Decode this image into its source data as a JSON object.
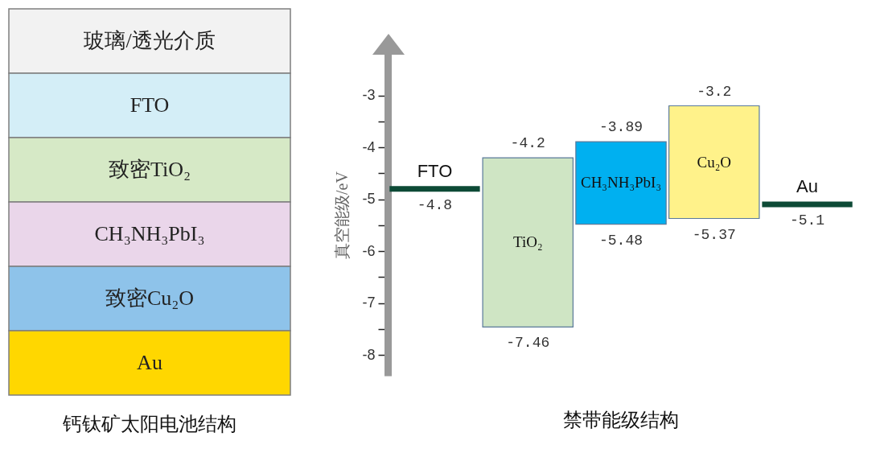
{
  "chart_data": [
    {
      "type": "other",
      "title": "钙钛矿太阳电池结构",
      "categories": [
        "玻璃/透光介质",
        "FTO",
        "致密TiO₂",
        "CH₃NH₃PbI₃",
        "致密Cu₂O",
        "Au"
      ],
      "colors": [
        "#f2f2f2",
        "#d4eef7",
        "#d6e9c6",
        "#ead6ea",
        "#8ec3ea",
        "#ffd700"
      ]
    },
    {
      "type": "bar",
      "title": "禁带能级结构",
      "ylabel": "真空能级/eV",
      "categories": [
        "FTO",
        "TiO₂",
        "CH₃NH₃PbI₃",
        "Cu₂O",
        "Au"
      ],
      "base": [
        -4.8,
        -7.46,
        -5.48,
        -5.37,
        -5.1
      ],
      "values": [
        0,
        3.26,
        1.59,
        2.17,
        0
      ],
      "colors": [
        "#0d4a36",
        "#cfe5c4",
        "#00b0f0",
        "#fff28a",
        "#0d4a36"
      ],
      "ylim": [
        -8.4,
        -2.2
      ],
      "yticks": [
        -3,
        {
          "value": -3.5,
          "label": null
        },
        -4,
        {
          "value": -4.5,
          "label": null
        },
        -5,
        {
          "value": -5.5,
          "label": null
        },
        -6,
        {
          "value": -6.5,
          "label": null
        },
        -7,
        {
          "value": -7.5,
          "label": null
        },
        -8
      ],
      "annotations": [
        {
          "text": "-4.8",
          "x": "FTO",
          "y": -4.8
        },
        {
          "text": "-4.2",
          "x": "TiO₂",
          "y": -4.2
        },
        {
          "text": "-7.46",
          "x": "TiO₂",
          "y": -7.46
        },
        {
          "text": "-3.89",
          "x": "CH₃NH₃PbI₃",
          "y": -3.89
        },
        {
          "text": "-5.48",
          "x": "CH₃NH₃PbI₃",
          "y": -5.48
        },
        {
          "text": "-3.2",
          "x": "Cu₂O",
          "y": -3.2
        },
        {
          "text": "-5.37",
          "x": "Cu₂O",
          "y": -5.37
        },
        {
          "text": "-5.1",
          "x": "Au",
          "y": -5.1
        }
      ]
    }
  ]
}
